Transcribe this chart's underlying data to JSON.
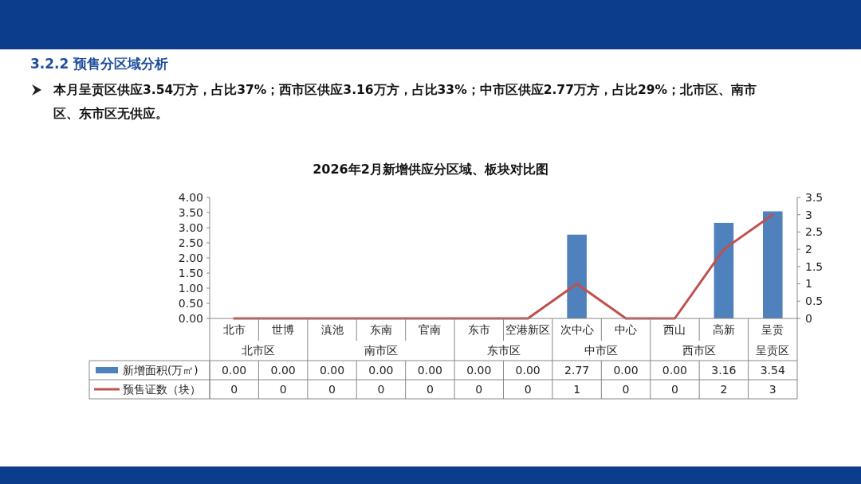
{
  "chart_data": {
    "type": "bar",
    "title": "2026年2月新增供应分区域、板块对比图",
    "categories": [
      "北市",
      "世博",
      "滇池",
      "东南",
      "官南",
      "东市",
      "空港新区",
      "次中心",
      "中心",
      "西山",
      "高新",
      "呈贡"
    ],
    "series": [
      {
        "name": "新增面积(万㎡)",
        "color": "#4f81bd",
        "values": [
          0,
          0,
          0,
          0,
          0,
          0,
          0,
          2.77,
          0,
          0,
          3.16,
          3.54
        ],
        "value_labels": [
          "0.00",
          "0.00",
          "0.00",
          "0.00",
          "0.00",
          "0.00",
          "0.00",
          "2.77",
          "0.00",
          "0.00",
          "3.16",
          "3.54"
        ]
      },
      {
        "name": "预售证数（块）",
        "type": "line",
        "axis": "y2",
        "color": "#c0504d",
        "values": [
          0,
          0,
          0,
          0,
          0,
          0,
          0,
          1,
          0,
          0,
          2,
          3
        ],
        "value_labels": [
          "0",
          "0",
          "0",
          "0",
          "0",
          "0",
          "0",
          "1",
          "0",
          "0",
          "2",
          "3"
        ]
      }
    ],
    "ylim": [
      0,
      4
    ],
    "yticks": [
      {
        "value": 0,
        "label": "0.00"
      },
      {
        "value": 0.5,
        "label": "0.50"
      },
      {
        "value": 1,
        "label": "1.00"
      },
      {
        "value": 1.5,
        "label": "1.50"
      },
      {
        "value": 2,
        "label": "2.00"
      },
      {
        "value": 2.5,
        "label": "2.50"
      },
      {
        "value": 3,
        "label": "3.00"
      },
      {
        "value": 3.5,
        "label": "3.50"
      },
      {
        "value": 4,
        "label": "4.00"
      }
    ],
    "y2lim": [
      0,
      3.5
    ],
    "y2ticks": [
      0,
      0.5,
      1,
      1.5,
      2,
      2.5,
      3,
      3.5
    ],
    "legend": "bottom",
    "grid": false,
    "marker": "none",
    "annotations": [
      "3.2.2 预售分区域分析",
      "本月呈贡区供应3.54万方，占比37%；西市区供应3.16万方，占比33%；中市区供应2.77万方，占比29%；北市区、南市区、东市区无供应。",
      "北市区",
      "南市区",
      "东市区",
      "中市区",
      "西市区",
      "呈贡区"
    ]
  }
}
